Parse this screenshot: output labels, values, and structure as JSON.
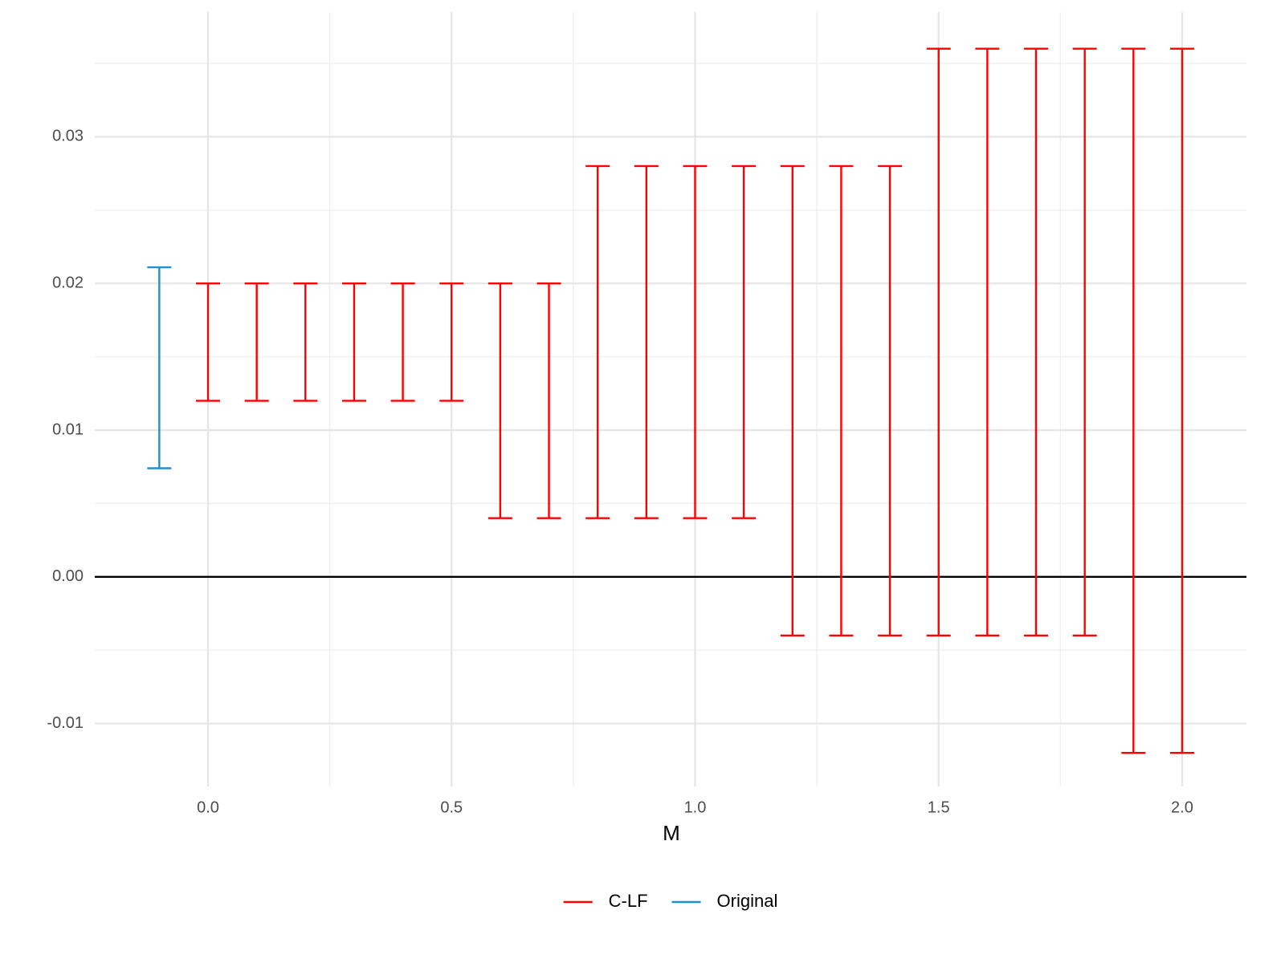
{
  "chart_data": {
    "type": "errorbar",
    "x_label": "M",
    "xlim": [
      -0.2325,
      2.132
    ],
    "ylim": [
      -0.01429,
      0.0385
    ],
    "xticks": [
      {
        "value": 0,
        "label": "0.0"
      },
      0.5,
      {
        "value": 1,
        "label": "1.0"
      },
      1.5,
      {
        "value": 2,
        "label": "2.0"
      }
    ],
    "yticks": [
      -0.01,
      {
        "value": 0,
        "label": "0.00"
      },
      0.01,
      0.02,
      0.03
    ],
    "xminorticks": [
      0.25,
      0.75,
      1.25,
      1.75
    ],
    "yminorticks": [
      -0.005,
      0.005,
      0.015,
      0.025,
      0.035
    ],
    "grid": true,
    "hline": 0,
    "legend": "bottom",
    "series": [
      {
        "name": "C-LF",
        "color": "#ff0000",
        "x": [
          0,
          0.1,
          0.2,
          0.3,
          0.4,
          0.5,
          0.6,
          0.7,
          0.8,
          0.9,
          1.0,
          1.1,
          1.2,
          1.3,
          1.4,
          1.5,
          1.6,
          1.7,
          1.8,
          1.9,
          2.0
        ],
        "low": [
          0.012,
          0.012,
          0.012,
          0.012,
          0.012,
          0.012,
          0.004,
          0.004,
          0.004,
          0.004,
          0.004,
          0.004,
          -0.004,
          -0.004,
          -0.004,
          -0.004,
          -0.004,
          -0.004,
          -0.004,
          -0.012,
          -0.012
        ],
        "high": [
          0.02,
          0.02,
          0.02,
          0.02,
          0.02,
          0.02,
          0.02,
          0.02,
          0.028,
          0.028,
          0.028,
          0.028,
          0.028,
          0.028,
          0.028,
          0.036,
          0.036,
          0.036,
          0.036,
          0.036,
          0.036
        ]
      },
      {
        "name": "Original",
        "color": "#1c8fd6",
        "x": [
          -0.1
        ],
        "low": [
          0.0074
        ],
        "high": [
          0.0211
        ]
      }
    ]
  }
}
